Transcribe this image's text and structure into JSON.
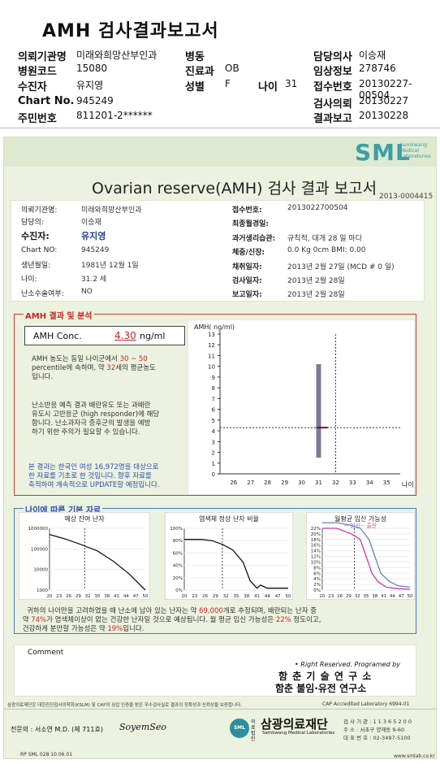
{
  "header": {
    "title": "AMH 검사결과보고서",
    "rows": [
      {
        "k1": "의뢰기관명",
        "v1": "미래와희망산부인과",
        "k2": "병동",
        "v2": "",
        "k3": "",
        "v3": "",
        "k4": "담당의사",
        "v4": "이승재"
      },
      {
        "k1": "병원코드",
        "v1": "15080",
        "k2": "진료과",
        "v2": "OB",
        "k3": "",
        "v3": "",
        "k4": "임상정보",
        "v4": "278746"
      },
      {
        "k1": "수진자",
        "v1": "유지영",
        "k2": "성별",
        "v2": "F",
        "k3": "나이",
        "v3": "31",
        "k4": "접수번호",
        "v4": "20130227-00504"
      },
      {
        "k1": "Chart No.",
        "v1": "945249",
        "k2": "",
        "v2": "",
        "k3": "",
        "v3": "",
        "k4": "검사의뢰",
        "v4": "20130227"
      },
      {
        "k1": "주민번호",
        "v1": "811201-2******",
        "k2": "",
        "v2": "",
        "k3": "",
        "v3": "",
        "k4": "결과보고",
        "v4": "20130228"
      }
    ]
  },
  "report": {
    "logo": "SML",
    "logo_sub": [
      "Samkwang",
      "Medical",
      "Laboratories"
    ],
    "title": "Ovarian reserve(AMH) 검사 결과 보고서",
    "doc_no": "2013-0004415",
    "info_left": [
      {
        "k": "의뢰기관명:",
        "v": "미래와희망산부인과"
      },
      {
        "k": "담당의:",
        "v": "이승재"
      },
      {
        "k": "수진자:",
        "v": "유지영"
      },
      {
        "k": "Chart NO:",
        "v": "945249"
      },
      {
        "k": "생년월일:",
        "v": "1981년 12월 1일"
      },
      {
        "k": "나이:",
        "v": "31.2 세"
      },
      {
        "k": "난소수술여부:",
        "v": "NO"
      }
    ],
    "info_right": [
      {
        "k": "접수번호:",
        "v": "2013022700504"
      },
      {
        "k": "최종월경일:",
        "v": ""
      },
      {
        "k": "과거생리습관:",
        "v": "규칙적, 대개   28 일 마다"
      },
      {
        "k": "체중/신장:",
        "v": "0.0 Kg      0cm     BMI:   0.00"
      },
      {
        "k": "채취일자:",
        "v": "2013년 2월 27일    (MCD #  0 일)"
      },
      {
        "k": "검사일자:",
        "v": "2013년 2월 28일"
      },
      {
        "k": "보고일자:",
        "v": "2013년 2월 28일"
      }
    ],
    "amh_section": "AMH 결과 및 분석",
    "amh_label": "AMH Conc.",
    "amh_value": "4.30",
    "amh_unit": "ng/ml",
    "para1": [
      "AMH 농도는 동일 나이군에서",
      "30 ~  50",
      "percentile에 속하며, 약",
      "32",
      "세의 평균농도",
      "입니다."
    ],
    "para2": [
      "난소반응 예측 결과 배란유도 또는 과배란",
      "유도시 고반응군 (high responder)에 해당",
      "합니다. 난소과자극 증후군의 발생을 예방",
      "하기 위한 주의가 필요할 수 있습니다."
    ],
    "para3": [
      "본 결과는 한국인 여성 16,972명을 대상으로",
      "한 자료를 기초로 한 것입니다. 향후 자료를",
      "축적하여 계속적으로 UPDATE할 예정입니다."
    ],
    "age_section": "나이에 따른 기본 자료",
    "chart_titles": [
      "예상 잔여 난자",
      "염색체 정상 난자 비율",
      "월평균 임신 가능성"
    ],
    "chart3_legend_pre": "-- 임신--",
    "chart3_legend_post": "출산",
    "summary": [
      "귀하의 나이만을 고려하였을 때 난소에 남아 있는 난자는 약",
      "69,000",
      "개로 추정되며, 배란되는 난자 중",
      "약",
      "74%",
      "가 염색체이상이 없는 건강한 난자일 것으로 예상됩니다. 월 평균 임신 가능성은",
      "22%",
      "정도이고,",
      "건강하게 분만할 가능성은 약",
      "19%",
      "입니다."
    ],
    "comment_label": "Comment",
    "rights": "• Right Reserved. Programed by",
    "institute1": "함 춘 기 술 연 구 소",
    "institute2": "함춘 불임·유전 연구소",
    "footer_note": "삼광의료재단은 대한진단검사의학회(KSLM) 및 CAP의 심업 인증을 받은 우수검사실로 결과의 정확성과 신뢰성을 보증합니다.",
    "cap": "CAP  Accredited  Laboratory  6994-01",
    "doctor": "전문의 : 서소연 M.D. (제 711호)",
    "signature": "SoyemSeo",
    "foundation_pre": "의료법인",
    "foundation": "삼광의료재단",
    "foundation_en": "Samkwang Medical Laboratories",
    "contact": [
      "검 사 기 관 : 1 1 3 6 5 2 0 0",
      "주   소 : 서초구 양재동 9-60",
      "대 표 번 호 : 02-3497-5100"
    ],
    "form_no": "RP  SML  028  10.06.01",
    "website": "www.smlab.co.kr"
  },
  "chart_data": [
    {
      "type": "line",
      "title": "",
      "ylabel": "AMH( ng/ml)",
      "xlabel": "나이",
      "x_ticks": [
        26,
        27,
        28,
        29,
        30,
        31,
        32,
        33,
        34,
        35
      ],
      "y_ticks": [
        0,
        1,
        2,
        3,
        4,
        5,
        6,
        7,
        8,
        9,
        10,
        11,
        12,
        13
      ],
      "ylim": [
        0,
        13
      ],
      "xlim": [
        25.2,
        35.8
      ],
      "range_bar": {
        "x": 31,
        "y_low": 1.5,
        "y_high": 10.2
      },
      "patient_age": 31.2,
      "patient_amh": 4.3,
      "ref_x": 32
    },
    {
      "type": "line",
      "title": "예상 잔여 난자",
      "yscale": "log",
      "y_ticks": [
        "1000",
        "10000",
        "100000",
        "1000000"
      ],
      "x_ticks": [
        20,
        23,
        26,
        29,
        32,
        35,
        38,
        41,
        44,
        47,
        50
      ],
      "x": [
        20,
        25,
        30,
        35,
        40,
        45,
        50
      ],
      "y": [
        500000,
        300000,
        160000,
        80000,
        25000,
        6000,
        1000
      ],
      "marker_x": 31
    },
    {
      "type": "line",
      "title": "염색체 정상 난자 비율",
      "y_ticks": [
        "0%",
        "20%",
        "40%",
        "60%",
        "80%",
        "100%"
      ],
      "x_ticks": [
        20,
        23,
        26,
        29,
        32,
        35,
        38,
        41,
        44,
        47,
        50
      ],
      "x": [
        20,
        25,
        28,
        31,
        34,
        37,
        39,
        41,
        42,
        44,
        47,
        50
      ],
      "y": [
        82,
        82,
        80,
        74,
        65,
        45,
        15,
        3,
        8,
        3,
        3,
        3
      ],
      "marker_x": 31
    },
    {
      "type": "line",
      "title": "월평균 임신 가능성",
      "y_ticks": [
        "0%",
        "2%",
        "4%",
        "6%",
        "8%",
        "10%",
        "12%",
        "14%",
        "16%",
        "18%",
        "20%",
        "22%"
      ],
      "x_ticks": [
        20,
        23,
        26,
        29,
        32,
        35,
        38,
        41,
        44,
        47,
        50
      ],
      "series": [
        {
          "name": "임신",
          "color": "#6a7dcc",
          "x": [
            20,
            25,
            30,
            33,
            36,
            38,
            40,
            43,
            46,
            50
          ],
          "y": [
            24,
            24,
            23,
            22,
            18,
            12,
            6,
            3,
            1.5,
            1
          ]
        },
        {
          "name": "출산",
          "color": "#c83bb0",
          "x": [
            20,
            25,
            30,
            33,
            35,
            37,
            39,
            42,
            46,
            50
          ],
          "y": [
            22,
            22,
            20,
            18,
            12,
            6,
            3,
            1,
            0.5,
            0.3
          ]
        }
      ],
      "marker_x": 31
    }
  ]
}
